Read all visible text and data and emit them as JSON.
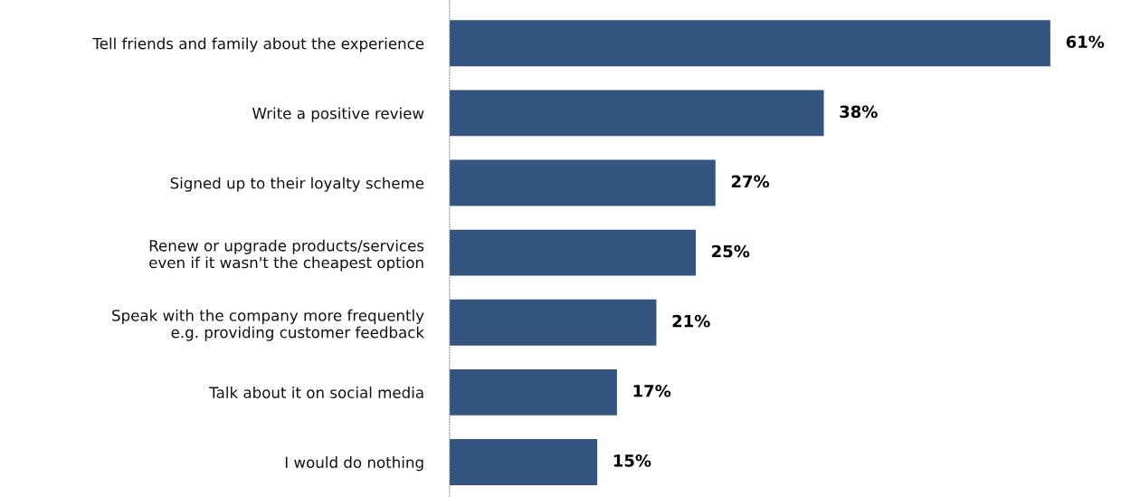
{
  "chart_data": {
    "type": "bar",
    "orientation": "horizontal",
    "categories": [
      "Tell friends and family about the experience",
      "Write a positive review",
      "Signed up to their loyalty scheme",
      "Renew or upgrade products/services\neven if it wasn't the cheapest option",
      "Speak with the company more frequently\ne.g. providing customer feedback",
      "Talk about it on social media",
      "I would do nothing"
    ],
    "values": [
      61,
      38,
      27,
      25,
      21,
      17,
      15
    ],
    "value_labels": [
      "61%",
      "38%",
      "27%",
      "25%",
      "21%",
      "17%",
      "15%"
    ],
    "color": "#34557f",
    "grid": false,
    "legend": false
  }
}
